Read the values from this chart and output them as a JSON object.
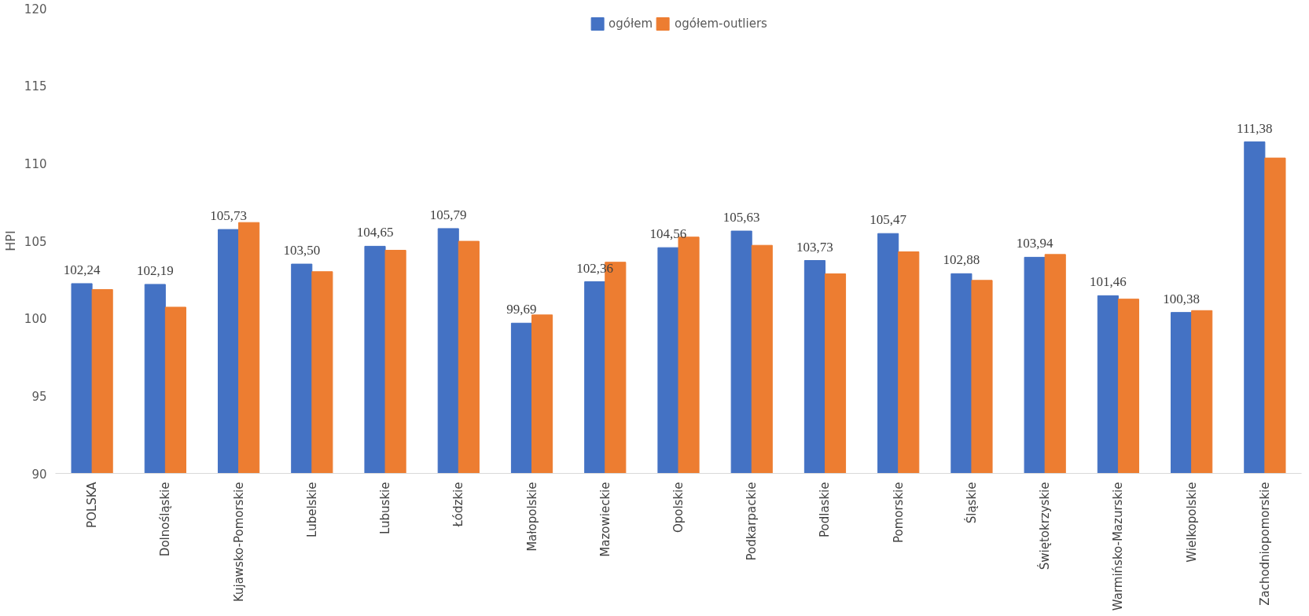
{
  "chart_data": {
    "type": "bar",
    "ylabel": "HPI",
    "categories": [
      "POLSKA",
      "Dolnośląskie",
      "Kujawsko-Pomorskie",
      "Lubelskie",
      "Lubuskie",
      "Łódzkie",
      "Małopolskie",
      "Mazowieckie",
      "Opolskie",
      "Podkarpackie",
      "Podlaskie",
      "Pomorskie",
      "Śląskie",
      "Świętokrzyskie",
      "Warmińsko-Mazurskie",
      "Wielkopolskie",
      "Zachodniopomorskie"
    ],
    "series": [
      {
        "name": "ogółem",
        "color": "#4472c4",
        "values": [
          102.24,
          102.19,
          105.73,
          103.5,
          104.65,
          105.79,
          99.69,
          102.36,
          104.56,
          105.63,
          103.73,
          105.47,
          102.88,
          103.94,
          101.46,
          100.38,
          111.38
        ],
        "value_labels": [
          "102,24",
          "102,19",
          "105,73",
          "103,50",
          "104,65",
          "105,79",
          "99,69",
          "102,36",
          "104,56",
          "105,63",
          "103,73",
          "105,47",
          "102,88",
          "103,94",
          "101,46",
          "100,38",
          "111,38"
        ]
      },
      {
        "name": "ogółem-outliers",
        "color": "#ed7d31",
        "values": [
          101.86,
          100.72,
          106.18,
          103.01,
          104.39,
          104.97,
          100.22,
          103.62,
          105.24,
          104.71,
          102.87,
          104.29,
          102.45,
          104.12,
          101.24,
          100.5,
          110.34
        ]
      }
    ],
    "ylim": [
      90,
      120
    ],
    "yticks": [
      90,
      95,
      100,
      105,
      110,
      115,
      120
    ],
    "grid": false,
    "legend": "top"
  }
}
